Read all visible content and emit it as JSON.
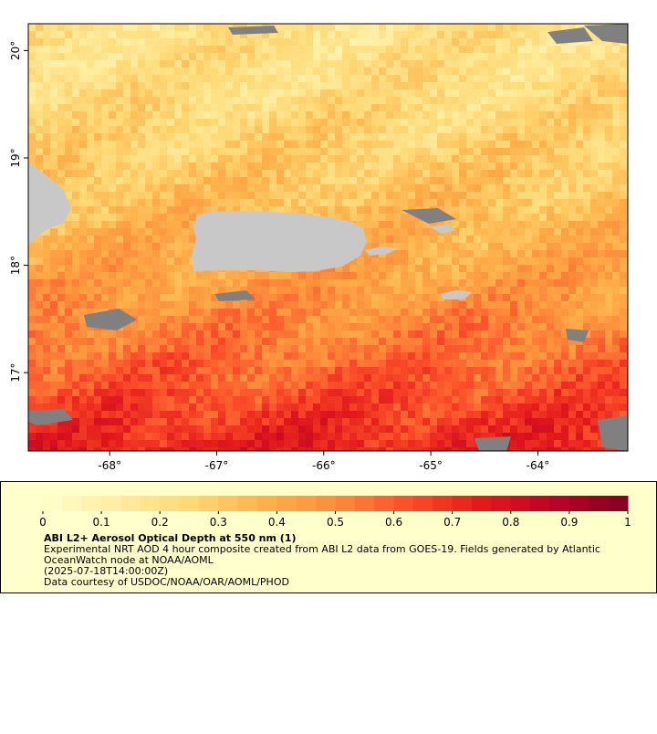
{
  "map": {
    "xlim": [
      -68.76,
      -63.16
    ],
    "ylim": [
      16.27,
      20.25
    ],
    "xticks": [
      {
        "value": -68,
        "label": "-68°"
      },
      {
        "value": -67,
        "label": "-67°"
      },
      {
        "value": -66,
        "label": "-66°"
      },
      {
        "value": -65,
        "label": "-65°"
      },
      {
        "value": -64,
        "label": "-64°"
      }
    ],
    "yticks": [
      {
        "value": 20,
        "label": "20°"
      },
      {
        "value": 19,
        "label": "19°"
      },
      {
        "value": 18,
        "label": "18°"
      },
      {
        "value": 17,
        "label": "17°"
      }
    ]
  },
  "colorbar": {
    "lim": [
      0,
      1
    ],
    "ticks": [
      0,
      0.1,
      0.2,
      0.3,
      0.4,
      0.5,
      0.6,
      0.7,
      0.8,
      0.9,
      1
    ],
    "colormap": [
      "#ffffcc",
      "#ffeda0",
      "#fed976",
      "#feb24c",
      "#fd8d3c",
      "#fc4e2a",
      "#e31a1c",
      "#bd0026",
      "#800026"
    ]
  },
  "legend": {
    "title": "ABI L2+ Aerosol Optical Depth at 550 nm (1)",
    "lines": [
      "Experimental NRT AOD 4 hour composite created from ABI L2 data from GOES-19. Fields generated by Atlantic",
      "OceanWatch node at NOAA/AOML",
      "(2025-07-18T14:00:00Z)",
      "Data courtesy of USDOC/NOAA/OAR/AOML/PHOD"
    ]
  }
}
